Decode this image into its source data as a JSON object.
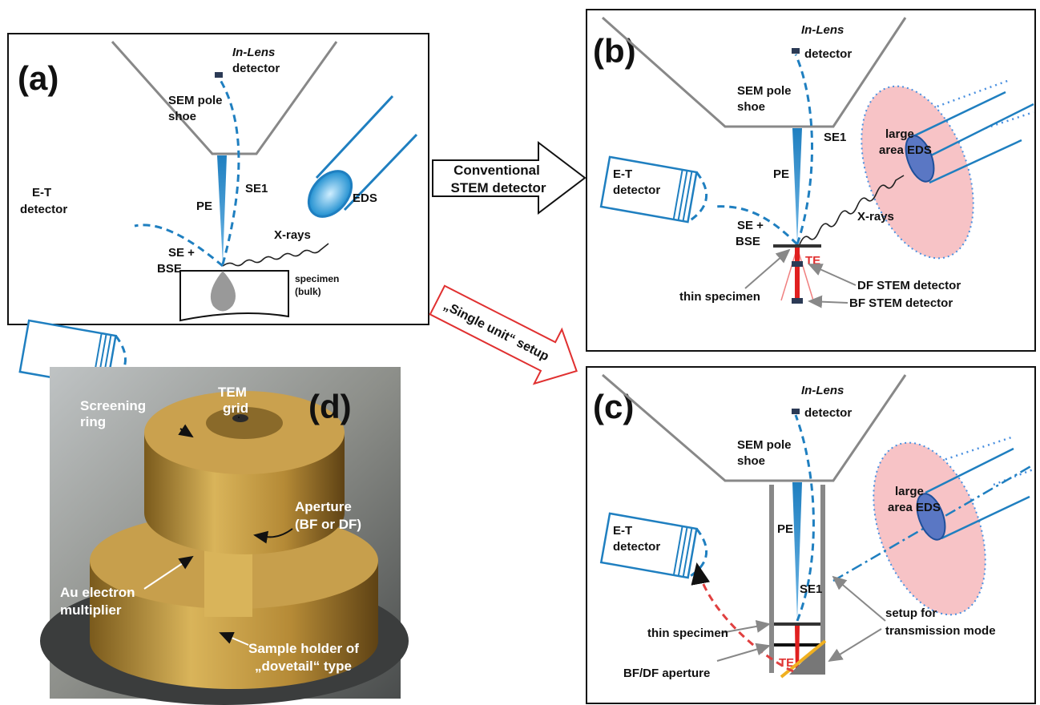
{
  "panels": {
    "a": {
      "label": "(a)",
      "in_lens": [
        "In-Lens",
        "detector"
      ],
      "pole_shoe": [
        "SEM pole",
        "shoe"
      ],
      "pe": "PE",
      "se1": "SE1",
      "eds": "EDS",
      "et_detector": [
        "E-T",
        "detector"
      ],
      "se_bse": [
        "SE +",
        "BSE"
      ],
      "xrays": "X-rays",
      "specimen": [
        "specimen",
        "(bulk)"
      ]
    },
    "b": {
      "label": "(b)",
      "in_lens": [
        "In-Lens",
        "detector"
      ],
      "pole_shoe": [
        "SEM pole",
        "shoe"
      ],
      "large_eds": [
        "large",
        "area EDS"
      ],
      "et_detector": [
        "E-T",
        "detector"
      ],
      "pe": "PE",
      "se1": "SE1",
      "se_bse": [
        "SE +",
        "BSE"
      ],
      "xrays": "X-rays",
      "te": "TE",
      "thin_specimen": "thin specimen",
      "df_stem": "DF STEM detector",
      "bf_stem": "BF STEM detector"
    },
    "c": {
      "label": "(c)",
      "in_lens": [
        "In-Lens",
        "detector"
      ],
      "pole_shoe": [
        "SEM pole",
        "shoe"
      ],
      "large_eds": [
        "large",
        "area EDS"
      ],
      "et_detector": [
        "E-T",
        "detector"
      ],
      "pe": "PE",
      "se1": "SE1",
      "thin_specimen": "thin specimen",
      "te": "TE",
      "aperture": "BF/DF aperture",
      "setup": [
        "setup for",
        "transmission mode"
      ]
    },
    "d": {
      "label": "(d)",
      "screening_ring": [
        "Screening",
        "ring"
      ],
      "tem_grid": [
        "TEM",
        "grid"
      ],
      "aperture": [
        "Aperture",
        "(BF or DF)"
      ],
      "multiplier": [
        "Au electron",
        "multiplier"
      ],
      "holder": [
        "Sample holder of",
        "„dovetail“ type"
      ]
    }
  },
  "arrows": {
    "conventional": [
      "Conventional",
      "STEM detector"
    ],
    "single_unit": "„Single unit“ setup"
  }
}
